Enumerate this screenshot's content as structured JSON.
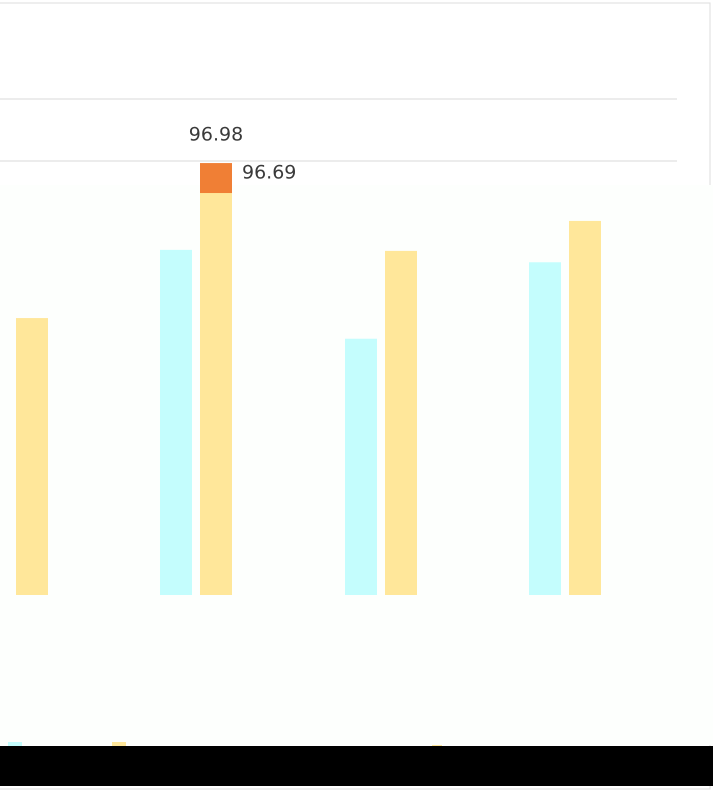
{
  "chart_data": {
    "type": "bar",
    "categories": [
      null,
      null,
      null,
      null
    ],
    "series": [
      {
        "color": "#c4fdfd",
        "values": [
          null,
          96.14,
          95.28,
          96.02
        ]
      },
      {
        "color": "#f07f35",
        "values": [
          null,
          96.98,
          null,
          null
        ],
        "show_labels": true,
        "label_pos": "top"
      },
      {
        "color": "#ffe79a",
        "values": [
          95.48,
          96.69,
          96.13,
          96.42
        ],
        "show_labels_for": [
          1
        ],
        "label_pos": "right"
      }
    ],
    "ylim": [
      92.8,
      97.6
    ],
    "yticks": [
      97,
      97.6
    ],
    "grid": true
  }
}
